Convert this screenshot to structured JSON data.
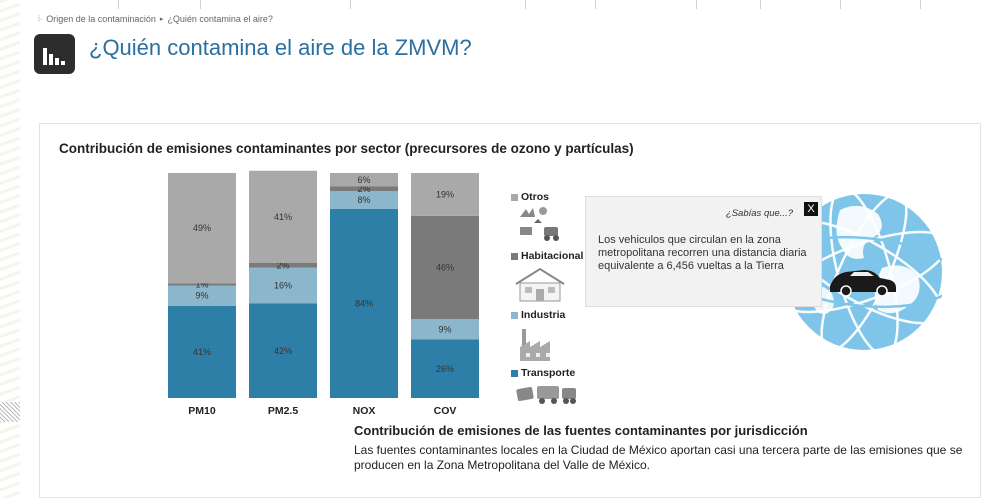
{
  "breadcrumb": {
    "items": [
      "Origen de la contaminación",
      "¿Quién contamina el aire?"
    ]
  },
  "header": {
    "title": "¿Quién contamina el aire de la ZMVM?",
    "icon": "bar-chart-icon"
  },
  "chart_data": {
    "type": "bar",
    "stacked": true,
    "title": "Contribución de emisiones contaminantes por sector (precursores de ozono y partículas)",
    "categories": [
      "PM10",
      "PM2.5",
      "NOX",
      "COV"
    ],
    "ylim": [
      0,
      100
    ],
    "grid": false,
    "legend_placement": "right",
    "series": [
      {
        "name": "Transporte",
        "color": "#2e7fa8",
        "values": [
          41,
          42,
          84,
          26
        ],
        "labels": [
          "41%",
          "42%",
          "84%",
          "26%"
        ]
      },
      {
        "name": "Industria",
        "color": "#8bb6cc",
        "values": [
          9,
          16,
          8,
          9
        ],
        "labels": [
          "9%",
          "16%",
          "8%",
          "9%"
        ]
      },
      {
        "name": "Habitacional",
        "color": "#7a7a7a",
        "values": [
          1,
          2,
          2,
          46
        ],
        "labels": [
          "1%",
          "2%",
          "2%",
          "46%"
        ]
      },
      {
        "name": "Otros",
        "color": "#a9a9a9",
        "values": [
          49,
          41,
          6,
          19
        ],
        "labels": [
          "49%",
          "41%",
          "6%",
          "19%"
        ]
      }
    ]
  },
  "tooltip": {
    "heading": "¿Sabías que...?",
    "close_label": "X",
    "body": "Los vehiculos que circulan en la zona metropolitana recorren una distancia diaria equivalente a 6,456 vueltas a la Tierra"
  },
  "section": {
    "title": "Contribución de emisiones de las fuentes contaminantes por jurisdicción",
    "text": "Las fuentes contaminantes locales en la Ciudad de México aportan casi una tercera parte de las emisiones que se producen en la Zona Metropolitana del Valle de México."
  }
}
